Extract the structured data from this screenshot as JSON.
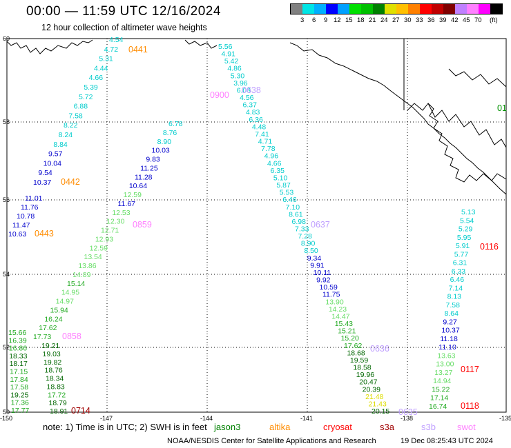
{
  "header": {
    "title": "00:00 — 11:59 UTC 12/16/2024",
    "subtitle": "12 hour collection of altimeter wave heights"
  },
  "legend": {
    "unit": "(ft)",
    "colors": [
      "#808080",
      "#00e5e5",
      "#00b0ff",
      "#0000ff",
      "#00a0ff",
      "#00e000",
      "#00c000",
      "#008000",
      "#e0e000",
      "#ffc000",
      "#ff8000",
      "#ff0000",
      "#c00000",
      "#800000",
      "#c080ff",
      "#ff80ff",
      "#ff00ff",
      "#000000"
    ],
    "labels": [
      "3",
      "6",
      "9",
      "12",
      "15",
      "18",
      "21",
      "24",
      "27",
      "30",
      "33",
      "36",
      "39",
      "42",
      "45",
      "70"
    ]
  },
  "axes": {
    "lat_labels": [
      "60",
      "58",
      "56",
      "54",
      "52",
      "50"
    ],
    "lon_labels": [
      "-150",
      "-147",
      "-144",
      "-141",
      "-138",
      "-135"
    ]
  },
  "times": [
    {
      "text": "0441",
      "color": "#ff8c00"
    },
    {
      "text": "0442",
      "color": "#ff8c00"
    },
    {
      "text": "0443",
      "color": "#ff8c00"
    },
    {
      "text": "0859",
      "color": "#ff80ff"
    },
    {
      "text": "0858",
      "color": "#ff80ff"
    },
    {
      "text": "0900",
      "color": "#ff80ff"
    },
    {
      "text": "0638",
      "color": "#c0a0ff"
    },
    {
      "text": "0637",
      "color": "#c0a0ff"
    },
    {
      "text": "0636",
      "color": "#c0a0ff"
    },
    {
      "text": "0635",
      "color": "#c0a0ff"
    },
    {
      "text": "0714",
      "color": "#a00000"
    },
    {
      "text": "0116",
      "color": "#ff0000"
    },
    {
      "text": "0117",
      "color": "#ff0000"
    },
    {
      "text": "0118",
      "color": "#ff0000"
    },
    {
      "text": "01",
      "color": "#009000"
    }
  ],
  "tracks": {
    "altika_0441": [
      "4.54",
      "4.72",
      "5.31",
      "4.44",
      "4.66",
      "5.39",
      "5.72",
      "6.88",
      "7.58",
      "8.22",
      "8.24",
      "8.84",
      "9.57",
      "10.04",
      "9.54",
      "10.37"
    ],
    "altika_0443": [
      "11.01",
      "11.76",
      "10.78",
      "11.47",
      "10.63"
    ],
    "swot_0859": [
      "6.78",
      "8.76",
      "8.90",
      "10.03",
      "9.83",
      "11.25",
      "11.28",
      "10.64",
      "12.59",
      "11.67",
      "12.53",
      "12.30",
      "12.71",
      "12.93",
      "12.59",
      "13.54",
      "13.86",
      "14.89",
      "15.14",
      "14.95",
      "14.97",
      "15.94",
      "16.24",
      "17.62",
      "17.73"
    ],
    "swot_0858": [
      "15.66",
      "16.39",
      "16.86",
      "18.33",
      "18.17",
      "17.15",
      "17.84",
      "17.58",
      "19.25",
      "17.36",
      "17.77"
    ],
    "swot_0858b": [
      "19.21",
      "19.03",
      "19.82",
      "18.76",
      "18.34",
      "18.83",
      "17.72",
      "18.79",
      "18.91"
    ],
    "s3b_0638": [
      "5.56",
      "4.91",
      "5.42",
      "4.86",
      "5.30",
      "3.96",
      "6.03",
      "4.56",
      "6.37",
      "4.83",
      "6.36",
      "4.48",
      "7.41",
      "4.71",
      "7.78",
      "4.96",
      "4.66",
      "6.35",
      "5.10",
      "5.87",
      "5.53",
      "6.46",
      "7.10",
      "8.61",
      "6.98",
      "7.33",
      "7.28",
      "8.90",
      "8.50",
      "9.34",
      "9.91",
      "10.11",
      "9.92",
      "10.59",
      "11.75",
      "13.90",
      "14.23",
      "14.47",
      "15.43",
      "15.21",
      "15.20",
      "17.62",
      "18.68",
      "19.59",
      "18.58",
      "19.96",
      "20.47",
      "20.39",
      "21.48",
      "21.43",
      "20.15"
    ],
    "cryosat_0116": [
      "5.13",
      "5.54",
      "5.29",
      "5.95",
      "5.91",
      "5.77",
      "6.31",
      "6.33",
      "6.46",
      "7.14",
      "8.13",
      "7.58",
      "8.64",
      "9.27",
      "10.37",
      "11.18",
      "11.10",
      "13.63",
      "13.00",
      "13.27",
      "14.94",
      "15.22",
      "17.14",
      "16.74"
    ]
  },
  "footer": {
    "note": "note: 1) Time is in UTC; 2) SWH is in feet",
    "satellites": [
      {
        "name": "jason3",
        "color": "#008000"
      },
      {
        "name": "altika",
        "color": "#ff8c00"
      },
      {
        "name": "cryosat",
        "color": "#ff0000"
      },
      {
        "name": "s3a",
        "color": "#a00000"
      },
      {
        "name": "s3b",
        "color": "#c0a0ff"
      },
      {
        "name": "swot",
        "color": "#ff80ff"
      }
    ],
    "credit": "NOAA/NESDIS Center for Satellite Applications and Research",
    "generated": "19 Dec 08:25:43 UTC 2024"
  }
}
